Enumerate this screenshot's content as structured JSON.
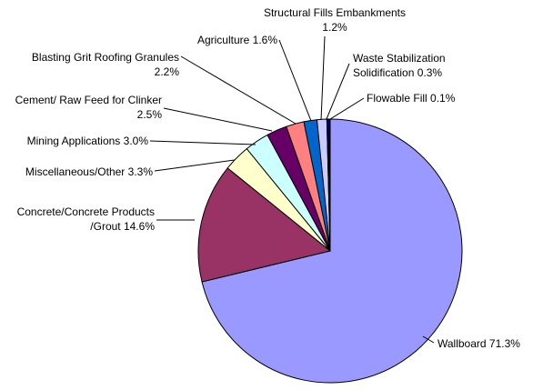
{
  "chart_data": {
    "type": "pie",
    "title": "",
    "start_angle_deg": 0,
    "direction": "clockwise",
    "slices": [
      {
        "label": "Wallboard",
        "value": 71.3,
        "color": "#9999ff",
        "text_lines": [
          "Wallboard 71.3%"
        ]
      },
      {
        "label": "Concrete/Concrete Products /Grout",
        "value": 14.6,
        "color": "#993366",
        "text_lines": [
          "Concrete/Concrete Products",
          "/Grout 14.6%"
        ]
      },
      {
        "label": "Miscellaneous/Other",
        "value": 3.3,
        "color": "#ffffcc",
        "text_lines": [
          "Miscellaneous/Other 3.3%"
        ]
      },
      {
        "label": "Mining Applications",
        "value": 3.0,
        "color": "#ccffff",
        "text_lines": [
          "Mining Applications 3.0%"
        ]
      },
      {
        "label": "Cement/ Raw Feed for Clinker",
        "value": 2.5,
        "color": "#660066",
        "text_lines": [
          "Cement/ Raw Feed for Clinker",
          "2.5%"
        ]
      },
      {
        "label": "Blasting Grit Roofing Granules",
        "value": 2.2,
        "color": "#ff8080",
        "text_lines": [
          "Blasting Grit Roofing Granules",
          "2.2%"
        ]
      },
      {
        "label": "Agriculture",
        "value": 1.6,
        "color": "#0066cc",
        "text_lines": [
          "Agriculture 1.6%"
        ]
      },
      {
        "label": "Structural Fills Embankments",
        "value": 1.2,
        "color": "#ccccff",
        "text_lines": [
          "Structural Fills Embankments",
          "1.2%"
        ]
      },
      {
        "label": "Waste Stabilization Solidification",
        "value": 0.3,
        "color": "#000080",
        "text_lines": [
          "Waste Stabilization",
          "Solidification 0.3%"
        ]
      },
      {
        "label": "Flowable Fill",
        "value": 0.1,
        "color": "#ff00ff",
        "text_lines": [
          "Flowable Fill 0.1%"
        ]
      }
    ]
  }
}
